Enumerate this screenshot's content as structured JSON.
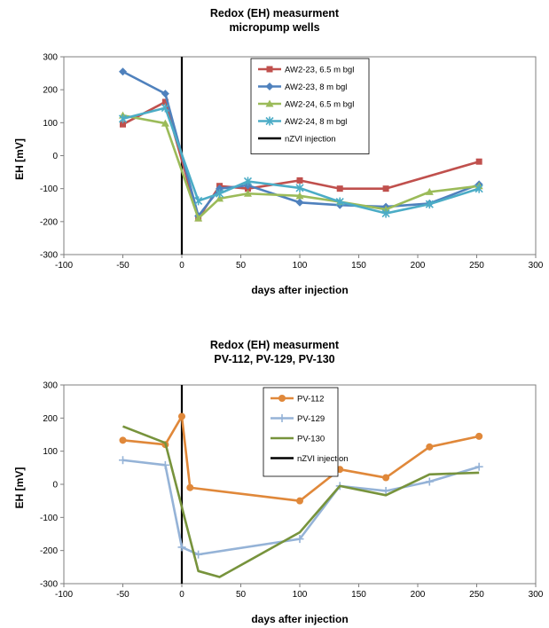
{
  "chart_data": [
    {
      "type": "line",
      "title": "Redox (EH)  measurment",
      "subtitle": "micropump wells",
      "xlabel": "days after injection",
      "ylabel": "EH [mV]",
      "xlim": [
        -100,
        300
      ],
      "ylim": [
        -300,
        300
      ],
      "xticks": [
        -100,
        -50,
        0,
        50,
        100,
        150,
        200,
        250,
        300
      ],
      "yticks": [
        300,
        200,
        100,
        0,
        -100,
        -200,
        -300
      ],
      "grid": false,
      "legend_position": "top-center",
      "injection_day": 0,
      "injection_label": "nZVI injection",
      "injection_color": "#000000",
      "series": [
        {
          "name": "AW2-23, 6.5 m bgl",
          "color": "#c0504d",
          "marker": "square",
          "x": [
            -50,
            -14,
            14,
            32,
            56,
            100,
            134,
            173,
            252
          ],
          "y": [
            95,
            163,
            -190,
            -92,
            -100,
            -75,
            -100,
            -100,
            -18
          ]
        },
        {
          "name": "AW2-23, 8 m bgl",
          "color": "#4f81bd",
          "marker": "diamond",
          "x": [
            -50,
            -14,
            14,
            32,
            56,
            100,
            134,
            173,
            210,
            252
          ],
          "y": [
            255,
            188,
            -183,
            -100,
            -90,
            -142,
            -150,
            -155,
            -145,
            -87
          ]
        },
        {
          "name": "AW2-24, 6.5 m bgl",
          "color": "#9bbb59",
          "marker": "triangle",
          "x": [
            -50,
            -14,
            14,
            32,
            56,
            100,
            134,
            173,
            210,
            252
          ],
          "y": [
            122,
            98,
            -190,
            -130,
            -115,
            -122,
            -140,
            -163,
            -110,
            -92
          ]
        },
        {
          "name": "AW2-24, 8 m bgl",
          "color": "#4bacc6",
          "marker": "x",
          "x": [
            -50,
            -14,
            14,
            32,
            56,
            100,
            134,
            173,
            210,
            252
          ],
          "y": [
            112,
            145,
            -137,
            -115,
            -78,
            -98,
            -140,
            -175,
            -147,
            -100
          ]
        }
      ]
    },
    {
      "type": "line",
      "title": "Redox (EH)  measurment",
      "subtitle": "PV-112, PV-129, PV-130",
      "xlabel": "days after injection",
      "ylabel": "EH [mV]",
      "xlim": [
        -100,
        300
      ],
      "ylim": [
        -300,
        300
      ],
      "xticks": [
        -100,
        -50,
        0,
        50,
        100,
        150,
        200,
        250,
        300
      ],
      "yticks": [
        300,
        200,
        100,
        0,
        -100,
        -200,
        -300
      ],
      "grid": false,
      "legend_position": "top-center",
      "injection_day": 0,
      "injection_label": "nZVI injection",
      "injection_color": "#000000",
      "series": [
        {
          "name": "PV-112",
          "color": "#e0883a",
          "marker": "circle",
          "x": [
            -50,
            -14,
            0,
            7,
            100,
            134,
            173,
            210,
            252
          ],
          "y": [
            133,
            120,
            205,
            -10,
            -50,
            45,
            20,
            113,
            145
          ]
        },
        {
          "name": "PV-129",
          "color": "#95b3d7",
          "marker": "plus",
          "x": [
            -50,
            -14,
            0,
            14,
            100,
            134,
            173,
            210,
            252
          ],
          "y": [
            73,
            58,
            -190,
            -212,
            -165,
            -5,
            -20,
            8,
            53
          ]
        },
        {
          "name": "PV-130",
          "color": "#77933c",
          "marker": "none",
          "x": [
            -50,
            -14,
            14,
            32,
            100,
            134,
            173,
            210,
            252
          ],
          "y": [
            175,
            125,
            -262,
            -280,
            -145,
            -5,
            -33,
            30,
            35
          ]
        }
      ]
    }
  ]
}
